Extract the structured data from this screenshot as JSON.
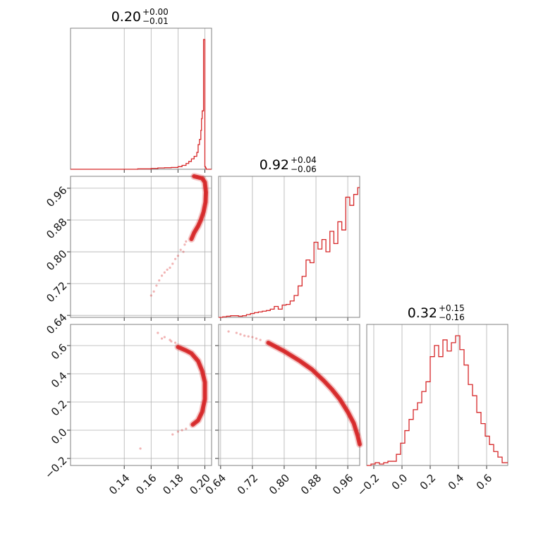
{
  "chart_data": {
    "type": "corner",
    "color": "#d62728",
    "parameters": [
      {
        "title": {
          "median": "0.20",
          "plus": "+0.00",
          "minus": "−0.01"
        },
        "range": [
          0.1,
          0.205
        ],
        "ticks": [
          0.14,
          0.16,
          0.18,
          0.2
        ],
        "tick_labels": [
          "0.14",
          "0.16",
          "0.18",
          "0.20"
        ]
      },
      {
        "title": {
          "median": "0.92",
          "plus": "+0.04",
          "minus": "−0.06"
        },
        "range": [
          0.635,
          0.99
        ],
        "ticks": [
          0.64,
          0.72,
          0.8,
          0.88,
          0.96
        ],
        "tick_labels": [
          "0.64",
          "0.72",
          "0.80",
          "0.88",
          "0.96"
        ]
      },
      {
        "title": {
          "median": "0.32",
          "plus": "+0.15",
          "minus": "−0.16"
        },
        "range": [
          -0.25,
          0.75
        ],
        "ticks": [
          -0.2,
          0.0,
          0.2,
          0.4,
          0.6
        ],
        "tick_labels": [
          "−0.2",
          "0.0",
          "0.2",
          "0.4",
          "0.6"
        ]
      }
    ],
    "marginals": [
      {
        "param": 0,
        "bins": [
          0.1,
          0.15,
          0.16,
          0.165,
          0.17,
          0.175,
          0.18,
          0.183,
          0.186,
          0.188,
          0.19,
          0.192,
          0.194,
          0.195,
          0.196,
          0.197,
          0.1975,
          0.198,
          0.199,
          0.2,
          0.2005,
          0.201,
          0.205
        ],
        "counts": [
          0,
          0.003,
          0.006,
          0.01,
          0.012,
          0.014,
          0.02,
          0.03,
          0.045,
          0.06,
          0.08,
          0.1,
          0.13,
          0.19,
          0.23,
          0.3,
          0.39,
          0.45,
          1.0,
          0.02,
          0.01,
          0
        ]
      },
      {
        "param": 1,
        "bins": [
          0.635,
          0.645,
          0.655,
          0.665,
          0.675,
          0.685,
          0.695,
          0.705,
          0.715,
          0.725,
          0.735,
          0.745,
          0.755,
          0.765,
          0.775,
          0.785,
          0.795,
          0.805,
          0.815,
          0.825,
          0.835,
          0.845,
          0.855,
          0.865,
          0.875,
          0.885,
          0.895,
          0.905,
          0.915,
          0.925,
          0.935,
          0.945,
          0.955,
          0.965,
          0.975,
          0.985,
          0.99
        ],
        "counts": [
          0,
          0.004,
          0.008,
          0.012,
          0.012,
          0.008,
          0.012,
          0.02,
          0.028,
          0.035,
          0.04,
          0.045,
          0.05,
          0.06,
          0.08,
          0.06,
          0.09,
          0.095,
          0.12,
          0.16,
          0.23,
          0.3,
          0.42,
          0.4,
          0.55,
          0.5,
          0.57,
          0.48,
          0.63,
          0.54,
          0.7,
          0.64,
          0.88,
          0.82,
          0.9,
          0.95
        ]
      },
      {
        "param": 2,
        "bins": [
          -0.25,
          -0.22,
          -0.19,
          -0.16,
          -0.13,
          -0.1,
          -0.07,
          -0.04,
          -0.01,
          0.02,
          0.05,
          0.08,
          0.11,
          0.14,
          0.17,
          0.2,
          0.23,
          0.26,
          0.29,
          0.32,
          0.35,
          0.38,
          0.41,
          0.44,
          0.47,
          0.5,
          0.53,
          0.56,
          0.59,
          0.62,
          0.65,
          0.68,
          0.71,
          0.75
        ],
        "counts": [
          0.0,
          0.01,
          0.02,
          0.01,
          0.02,
          0.03,
          0.03,
          0.08,
          0.16,
          0.25,
          0.33,
          0.4,
          0.45,
          0.53,
          0.6,
          0.78,
          0.86,
          0.78,
          0.9,
          0.82,
          0.88,
          0.93,
          0.83,
          0.72,
          0.58,
          0.5,
          0.38,
          0.3,
          0.21,
          0.15,
          0.1,
          0.06,
          0.02
        ]
      }
    ],
    "joint": [
      {
        "x_param": 0,
        "y_param": 1,
        "band": [
          [
            0.19,
            0.832
          ],
          [
            0.192,
            0.848
          ],
          [
            0.195,
            0.865
          ],
          [
            0.197,
            0.88
          ],
          [
            0.199,
            0.9
          ],
          [
            0.2005,
            0.925
          ],
          [
            0.2008,
            0.95
          ],
          [
            0.2,
            0.975
          ],
          [
            0.198,
            0.985
          ],
          [
            0.192,
            0.99
          ]
        ],
        "points": [
          [
            0.18,
            0.79
          ],
          [
            0.176,
            0.77
          ],
          [
            0.172,
            0.755
          ],
          [
            0.168,
            0.74
          ],
          [
            0.166,
            0.728
          ],
          [
            0.164,
            0.715
          ],
          [
            0.182,
            0.805
          ],
          [
            0.185,
            0.818
          ],
          [
            0.178,
            0.782
          ],
          [
            0.17,
            0.748
          ],
          [
            0.162,
            0.7
          ],
          [
            0.16,
            0.69
          ],
          [
            0.174,
            0.76
          ],
          [
            0.184,
            0.8
          ],
          [
            0.186,
            0.826
          ]
        ]
      },
      {
        "x_param": 0,
        "y_param": 2,
        "band": [
          [
            0.18,
            0.59
          ],
          [
            0.186,
            0.565
          ],
          [
            0.19,
            0.545
          ],
          [
            0.195,
            0.49
          ],
          [
            0.198,
            0.42
          ],
          [
            0.2,
            0.34
          ],
          [
            0.2,
            0.22
          ],
          [
            0.198,
            0.13
          ],
          [
            0.195,
            0.07
          ],
          [
            0.191,
            0.04
          ]
        ],
        "points": [
          [
            0.165,
            0.69
          ],
          [
            0.17,
            0.66
          ],
          [
            0.174,
            0.64
          ],
          [
            0.178,
            0.62
          ],
          [
            0.168,
            0.65
          ],
          [
            0.183,
            0.0
          ],
          [
            0.186,
            0.01
          ],
          [
            0.18,
            -0.01
          ],
          [
            0.176,
            -0.03
          ],
          [
            0.152,
            -0.13
          ],
          [
            0.175,
            0.63
          ]
        ]
      },
      {
        "x_param": 1,
        "y_param": 2,
        "band": [
          [
            0.76,
            0.62
          ],
          [
            0.8,
            0.56
          ],
          [
            0.84,
            0.49
          ],
          [
            0.87,
            0.43
          ],
          [
            0.9,
            0.35
          ],
          [
            0.92,
            0.29
          ],
          [
            0.94,
            0.22
          ],
          [
            0.96,
            0.13
          ],
          [
            0.975,
            0.05
          ],
          [
            0.985,
            -0.04
          ],
          [
            0.99,
            -0.1
          ]
        ],
        "points": [
          [
            0.66,
            0.7
          ],
          [
            0.68,
            0.69
          ],
          [
            0.7,
            0.67
          ],
          [
            0.72,
            0.66
          ],
          [
            0.74,
            0.64
          ],
          [
            0.69,
            0.68
          ],
          [
            0.71,
            0.665
          ],
          [
            0.73,
            0.65
          ]
        ]
      }
    ]
  }
}
